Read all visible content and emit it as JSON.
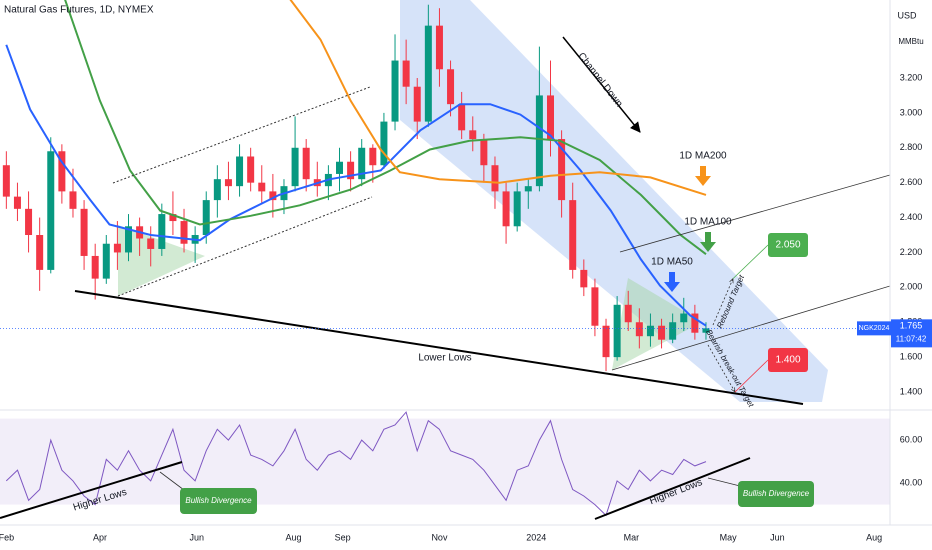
{
  "chart_data": {
    "type": "candlestick",
    "title": "Natural Gas Futures, 1D, NYMEX",
    "currency": "USD",
    "unit": "MMBtu",
    "colors": {
      "up": "#089981",
      "down": "#f23645"
    },
    "x": [
      0,
      7,
      14,
      21,
      28,
      35,
      42,
      49,
      56,
      63,
      70,
      77,
      84,
      91,
      98,
      105,
      112,
      119,
      126,
      133,
      140,
      147,
      154,
      161,
      168,
      175,
      182,
      189,
      196,
      203,
      210,
      217,
      224,
      231,
      238,
      245,
      252,
      259,
      266,
      273,
      280,
      287,
      294,
      301,
      308,
      315,
      322,
      329,
      336,
      343,
      350,
      357,
      364,
      371,
      378,
      385,
      392,
      399,
      406,
      413,
      420,
      427,
      434,
      441
    ],
    "open": [
      2.7,
      2.52,
      2.45,
      2.3,
      2.1,
      2.78,
      2.55,
      2.45,
      2.18,
      2.05,
      2.25,
      2.2,
      2.35,
      2.28,
      2.22,
      2.42,
      2.38,
      2.25,
      2.3,
      2.5,
      2.62,
      2.58,
      2.75,
      2.6,
      2.55,
      2.5,
      2.58,
      2.8,
      2.62,
      2.58,
      2.65,
      2.72,
      2.62,
      2.8,
      2.7,
      2.95,
      3.3,
      3.15,
      2.95,
      3.5,
      3.25,
      3.05,
      2.9,
      2.85,
      2.7,
      2.55,
      2.35,
      2.55,
      2.58,
      3.1,
      2.85,
      2.5,
      2.1,
      2.0,
      1.78,
      1.6,
      1.9,
      1.8,
      1.72,
      1.78,
      1.7,
      1.8,
      1.85,
      1.74
    ],
    "high": [
      2.78,
      2.6,
      2.55,
      2.4,
      2.86,
      2.82,
      2.68,
      2.5,
      2.25,
      2.3,
      2.38,
      2.42,
      2.4,
      2.35,
      2.48,
      2.55,
      2.45,
      2.35,
      2.55,
      2.7,
      2.72,
      2.82,
      2.8,
      2.7,
      2.65,
      2.62,
      2.98,
      2.85,
      2.72,
      2.7,
      2.8,
      2.78,
      2.85,
      2.82,
      3.0,
      3.45,
      3.42,
      3.2,
      3.62,
      3.6,
      3.3,
      3.12,
      2.98,
      2.88,
      2.75,
      2.6,
      2.6,
      2.62,
      3.38,
      3.3,
      2.9,
      2.6,
      2.16,
      2.05,
      1.82,
      1.95,
      1.98,
      1.88,
      1.85,
      1.82,
      1.85,
      1.94,
      1.9,
      1.8
    ],
    "low": [
      2.45,
      2.38,
      2.2,
      1.98,
      2.08,
      2.48,
      2.4,
      2.1,
      1.93,
      2.02,
      2.1,
      2.15,
      2.18,
      2.12,
      2.18,
      2.3,
      2.2,
      2.14,
      2.25,
      2.4,
      2.5,
      2.52,
      2.55,
      2.48,
      2.4,
      2.42,
      2.55,
      2.55,
      2.52,
      2.5,
      2.55,
      2.55,
      2.58,
      2.6,
      2.68,
      2.9,
      3.05,
      2.85,
      2.92,
      3.15,
      2.98,
      2.85,
      2.78,
      2.6,
      2.45,
      2.25,
      2.32,
      2.45,
      2.55,
      2.75,
      2.4,
      2.05,
      1.95,
      1.72,
      1.52,
      1.58,
      1.75,
      1.65,
      1.66,
      1.65,
      1.68,
      1.75,
      1.7,
      1.7
    ],
    "close": [
      2.52,
      2.45,
      2.3,
      2.1,
      2.78,
      2.55,
      2.45,
      2.18,
      2.05,
      2.25,
      2.2,
      2.35,
      2.28,
      2.22,
      2.42,
      2.38,
      2.25,
      2.3,
      2.5,
      2.62,
      2.58,
      2.75,
      2.6,
      2.55,
      2.5,
      2.58,
      2.8,
      2.62,
      2.58,
      2.65,
      2.72,
      2.62,
      2.8,
      2.7,
      2.95,
      3.3,
      3.15,
      2.95,
      3.5,
      3.25,
      3.05,
      2.9,
      2.85,
      2.7,
      2.55,
      2.35,
      2.55,
      2.58,
      3.1,
      2.85,
      2.5,
      2.1,
      2.0,
      1.78,
      1.6,
      1.9,
      1.8,
      1.72,
      1.78,
      1.7,
      1.8,
      1.85,
      1.74,
      1.765
    ],
    "xlim": [
      -4,
      557
    ],
    "xticks": [
      {
        "value": 0,
        "label": "Feb"
      },
      {
        "value": 59,
        "label": "Apr"
      },
      {
        "value": 120,
        "label": "Jun"
      },
      {
        "value": 181,
        "label": "Aug"
      },
      {
        "value": 212,
        "label": "Sep"
      },
      {
        "value": 273,
        "label": "Nov"
      },
      {
        "value": 334,
        "label": "2024"
      },
      {
        "value": 394,
        "label": "Mar"
      },
      {
        "value": 455,
        "label": "May"
      },
      {
        "value": 486,
        "label": "Jun"
      },
      {
        "value": 547,
        "label": "Aug"
      }
    ],
    "ylim": [
      1.297,
      3.647
    ],
    "yticks": [
      {
        "value": 3.2,
        "label": "3.200"
      },
      {
        "value": 3.0,
        "label": "3.000"
      },
      {
        "value": 2.8,
        "label": "2.800"
      },
      {
        "value": 2.6,
        "label": "2.600"
      },
      {
        "value": 2.4,
        "label": "2.400"
      },
      {
        "value": 2.2,
        "label": "2.200"
      },
      {
        "value": 2.0,
        "label": "2.000"
      },
      {
        "value": 1.8,
        "label": "1.800"
      },
      {
        "value": 1.6,
        "label": "1.600"
      },
      {
        "value": 1.4,
        "label": "1.400"
      }
    ],
    "moving_averages": [
      {
        "name": "1D MA50",
        "color": "#2962ff",
        "x": [
          0,
          15,
          34,
          53,
          65,
          91,
          122,
          141,
          172,
          204,
          236,
          261,
          286,
          305,
          324,
          343,
          362,
          381,
          400,
          412,
          431,
          441
        ],
        "values": [
          3.39,
          3.02,
          2.73,
          2.5,
          2.36,
          2.3,
          2.27,
          2.39,
          2.53,
          2.62,
          2.67,
          2.9,
          3.05,
          3.05,
          2.99,
          2.87,
          2.67,
          2.44,
          2.16,
          2.01,
          1.84,
          1.78
        ]
      },
      {
        "name": "1D MA100",
        "color": "#43a047",
        "x": [
          37,
          59,
          78,
          97,
          122,
          154,
          185,
          217,
          242,
          267,
          292,
          324,
          349,
          374,
          400,
          425,
          441
        ],
        "values": [
          3.65,
          3.07,
          2.67,
          2.44,
          2.36,
          2.41,
          2.47,
          2.56,
          2.67,
          2.79,
          2.84,
          2.86,
          2.84,
          2.73,
          2.53,
          2.3,
          2.19
        ]
      },
      {
        "name": "1D MA200",
        "color": "#f7931a",
        "x": [
          179,
          198,
          217,
          236,
          248,
          273,
          311,
          343,
          374,
          406,
          441
        ],
        "values": [
          3.65,
          3.42,
          3.07,
          2.79,
          2.66,
          2.62,
          2.6,
          2.64,
          2.66,
          2.63,
          2.53
        ]
      }
    ],
    "last_price": 1.765,
    "symbol": "NGK2024",
    "countdown": "11:07:42",
    "targets": [
      {
        "name": "Rebound Target",
        "value": 2.05,
        "label": "2.050",
        "color": "#4caf50"
      },
      {
        "name": "Bearish break-out Target",
        "value": 1.4,
        "label": "1.400",
        "color": "#f23645"
      }
    ],
    "annotations": {
      "channel": "Channel Down",
      "lower_lows": "Lower Lows",
      "higher_lows": [
        "Higher Lows",
        "Higher Lows"
      ],
      "divergence": [
        "Bullish Divergence",
        "Bullish Divergence"
      ]
    },
    "rsi": {
      "color": "#7e57c2",
      "values": [
        41,
        46,
        32,
        37,
        60,
        46,
        41,
        34,
        30,
        51,
        46,
        55,
        46,
        41,
        53,
        65,
        46,
        41,
        55,
        65,
        60,
        67,
        53,
        51,
        48,
        55,
        65,
        51,
        46,
        53,
        55,
        51,
        60,
        55,
        65,
        67,
        73,
        55,
        69,
        65,
        55,
        53,
        51,
        46,
        39,
        32,
        46,
        48,
        60,
        69,
        51,
        37,
        34,
        30,
        25,
        41,
        37,
        46,
        41,
        46,
        44,
        51,
        48,
        50
      ],
      "ylim": [
        21.9,
        74
      ],
      "yticks": [
        {
          "value": 60,
          "label": "60.00"
        },
        {
          "value": 40,
          "label": "40.00"
        }
      ],
      "band": [
        30,
        70
      ]
    }
  }
}
